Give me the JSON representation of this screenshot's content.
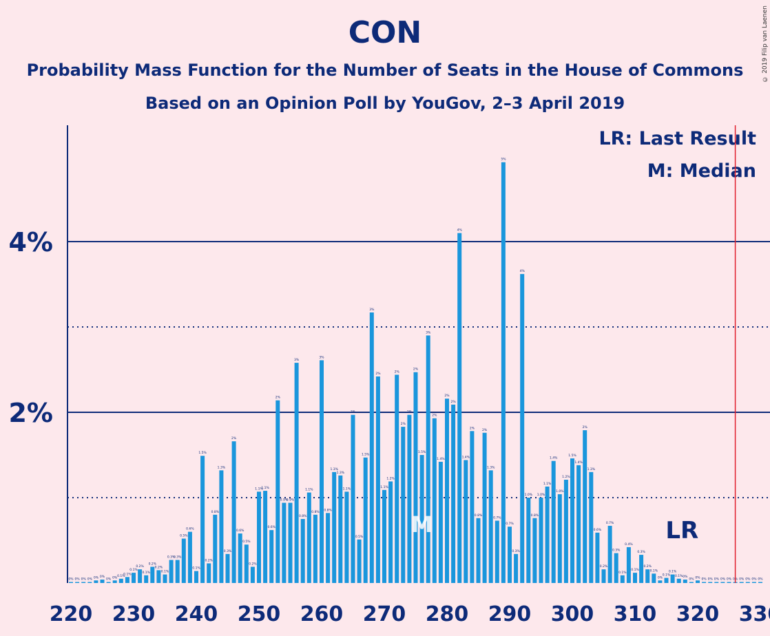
{
  "header": {
    "title": "CON",
    "subtitle": "Probability Mass Function for the Number of Seats in the House of Commons",
    "subtitle2": "Based on an Opinion Poll by YouGov, 2–3 April 2019",
    "copyright": "© 2019 Filip van Laenen"
  },
  "legend": {
    "lr": "LR: Last Result",
    "m": "M: Median"
  },
  "colors": {
    "background": "#fde8ec",
    "bar": "#1a96dc",
    "text": "#0d2a78",
    "last_result_line": "#e0202e"
  },
  "chart_data": {
    "type": "bar",
    "x": [
      220,
      221,
      222,
      223,
      224,
      225,
      226,
      227,
      228,
      229,
      230,
      231,
      232,
      233,
      234,
      235,
      236,
      237,
      238,
      239,
      240,
      241,
      242,
      243,
      244,
      245,
      246,
      247,
      248,
      249,
      250,
      251,
      252,
      253,
      254,
      255,
      256,
      257,
      258,
      259,
      260,
      261,
      262,
      263,
      264,
      265,
      266,
      267,
      268,
      269,
      270,
      271,
      272,
      273,
      274,
      275,
      276,
      277,
      278,
      279,
      280,
      281,
      282,
      283,
      284,
      285,
      286,
      287,
      288,
      289,
      290,
      291,
      292,
      293,
      294,
      295,
      296,
      297,
      298,
      299,
      300,
      301,
      302,
      303,
      304,
      305,
      306,
      307,
      308,
      309,
      310,
      311,
      312,
      313,
      314,
      315,
      316,
      317,
      318,
      319,
      320,
      321,
      322,
      323,
      324,
      325,
      326,
      327,
      328,
      329,
      330
    ],
    "values": [
      0,
      0,
      0.01,
      0,
      0.03,
      0.04,
      0.01,
      0.03,
      0.05,
      0.07,
      0.12,
      0.16,
      0.09,
      0.19,
      0.15,
      0.1,
      0.27,
      0.27,
      0.52,
      0.6,
      0.14,
      1.49,
      0.23,
      0.8,
      1.32,
      0.34,
      1.66,
      0.58,
      0.45,
      0.19,
      1.07,
      1.08,
      0.62,
      2.14,
      0.94,
      0.94,
      2.58,
      0.75,
      1.06,
      0.8,
      2.61,
      0.82,
      1.3,
      1.26,
      1.07,
      1.97,
      0.51,
      1.47,
      3.17,
      2.42,
      1.09,
      1.19,
      2.44,
      1.83,
      1.97,
      2.47,
      1.5,
      2.9,
      1.93,
      1.42,
      2.16,
      2.09,
      4.1,
      1.44,
      1.78,
      0.76,
      1.76,
      1.32,
      0.73,
      4.93,
      0.66,
      0.34,
      3.62,
      1,
      0.76,
      1,
      1.13,
      1.43,
      1.04,
      1.21,
      1.46,
      1.38,
      1.79,
      1.3,
      0.59,
      0.16,
      0.67,
      0.35,
      0.09,
      0.42,
      0.12,
      0.33,
      0.16,
      0.11,
      0.03,
      0.06,
      0.1,
      0.05,
      0.04,
      0.01,
      0.03,
      0.01,
      0,
      0,
      0,
      0.01,
      0,
      0,
      0,
      0,
      0
    ],
    "value_labels": [
      "0%",
      "0%",
      "0%",
      "0%",
      "0%",
      "0%",
      "0%",
      "0%",
      "0.1%",
      "0.1%",
      "0.1%",
      "0.2%",
      "0.1%",
      "0.2%",
      "0.2%",
      "0.1%",
      "0.3%",
      "0.3%",
      "0.5%",
      "0.6%",
      "0.1%",
      "1.5%",
      "0.2%",
      "0.8%",
      "1.3%",
      "0.3%",
      "2%",
      "0.6%",
      "0.5%",
      "0.2%",
      "1.1%",
      "1.1%",
      "0.6%",
      "2%",
      "0.9%",
      "0.9%",
      "3%",
      "0.8%",
      "1.1%",
      "0.8%",
      "3%",
      "0.8%",
      "1.3%",
      "1.3%",
      "1.1%",
      "2%",
      "0.5%",
      "1.5%",
      "3%",
      "2%",
      "1.1%",
      "1.2%",
      "2%",
      "2%",
      "2%",
      "2%",
      "1.5%",
      "3%",
      "2%",
      "1.4%",
      "2%",
      "2%",
      "4%",
      "1.4%",
      "2%",
      "0.8%",
      "2%",
      "1.3%",
      "0.7%",
      "5%",
      "0.7%",
      "0.3%",
      "4%",
      "1.0%",
      "0.8%",
      "1.0%",
      "1.1%",
      "1.4%",
      "1.0%",
      "1.2%",
      "1.5%",
      "1.4%",
      "2%",
      "1.3%",
      "0.6%",
      "0.2%",
      "0.7%",
      "0.3%",
      "0.1%",
      "0.4%",
      "0.1%",
      "0.3%",
      "0.2%",
      "0.1%",
      "0%",
      "0.1%",
      "0.1%",
      "0.1%",
      "0%",
      "0%",
      "0%",
      "0%",
      "0%",
      "0%",
      "0%",
      "0%",
      "0%",
      "0%",
      "0%",
      "0%",
      "0%"
    ],
    "x_ticks": [
      220,
      230,
      240,
      250,
      260,
      270,
      280,
      290,
      300,
      310,
      320,
      330
    ],
    "x_tick_labels": [
      "220",
      "230",
      "240",
      "250",
      "260",
      "270",
      "280",
      "290",
      "300",
      "310",
      "320",
      "330"
    ],
    "y_ticks": [
      2,
      4
    ],
    "y_tick_labels": [
      "2%",
      "4%"
    ],
    "y_dotted_lines": [
      1,
      3
    ],
    "xlim": [
      220,
      330
    ],
    "ylim": [
      0,
      5.4
    ],
    "median": 276,
    "median_label": "M",
    "last_result": 326,
    "last_result_label": "LR"
  }
}
